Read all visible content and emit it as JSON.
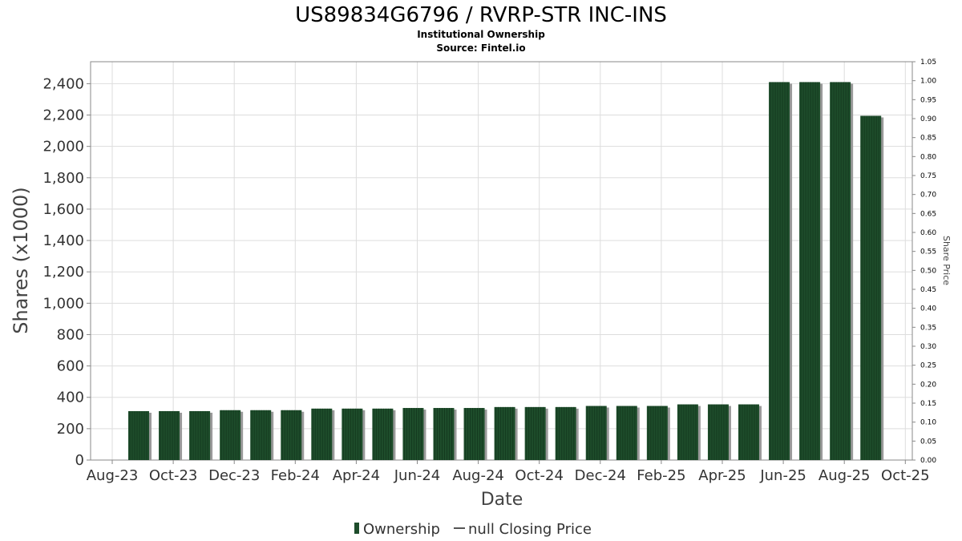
{
  "chart_data": {
    "type": "bar",
    "title": "US89834G6796 / RVRP-STR INC-INS",
    "subtitle": "Institutional Ownership",
    "source": "Source: Fintel.io",
    "xlabel": "Date",
    "ylabel": "Shares (x1000)",
    "y2label": "Share Price",
    "ylim": [
      0,
      2540
    ],
    "y2lim": [
      0,
      1.05
    ],
    "yticks": [
      "0",
      "200",
      "400",
      "600",
      "800",
      "1,000",
      "1,200",
      "1,400",
      "1,600",
      "1,800",
      "2,000",
      "2,200",
      "2,400"
    ],
    "y2ticks": [
      "0.00",
      "0.05",
      "0.10",
      "0.15",
      "0.20",
      "0.25",
      "0.30",
      "0.35",
      "0.40",
      "0.45",
      "0.50",
      "0.55",
      "0.60",
      "0.65",
      "0.70",
      "0.75",
      "0.80",
      "0.85",
      "0.90",
      "0.95",
      "1.00",
      "1.05"
    ],
    "xticks": [
      "Aug-23",
      "Oct-23",
      "Dec-23",
      "Feb-24",
      "Apr-24",
      "Jun-24",
      "Aug-24",
      "Oct-24",
      "Dec-24",
      "Feb-25",
      "Apr-25",
      "Jun-25",
      "Aug-25",
      "Oct-25"
    ],
    "grid": true,
    "legend_position": "bottom",
    "bar_color": "#1e4d2b",
    "series": [
      {
        "name": "Ownership",
        "values": [
          312,
          312,
          312,
          318,
          318,
          318,
          328,
          328,
          328,
          332,
          332,
          332,
          338,
          338,
          338,
          345,
          345,
          345,
          355,
          355,
          355,
          2410,
          2410,
          2410,
          2195
        ]
      }
    ],
    "legend": [
      {
        "label": "Ownership",
        "symbol": "bar"
      },
      {
        "label": "null Closing Price",
        "symbol": "line"
      }
    ]
  }
}
